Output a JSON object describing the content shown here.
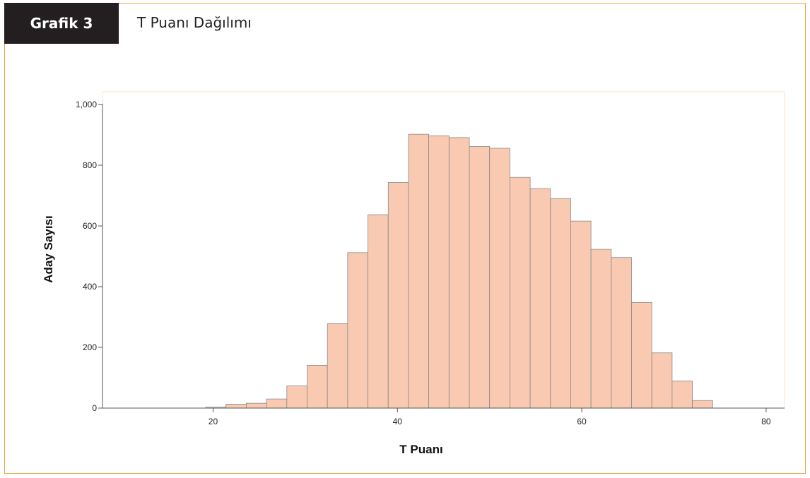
{
  "header": {
    "tag": "Grafik 3",
    "title": "T Puanı Dağılımı"
  },
  "colors": {
    "frame": "#f0a24a",
    "tag_bg": "#231f20",
    "bar_fill": "#f9c9b1",
    "bar_stroke": "#8a8a8a"
  },
  "chart_data": {
    "type": "bar",
    "histogram": true,
    "title": "",
    "xlabel": "T Puanı",
    "ylabel": "Aday Sayısı",
    "xlim": [
      8,
      82
    ],
    "ylim": [
      0,
      1000
    ],
    "xticks": [
      20,
      40,
      60,
      80
    ],
    "yticks": [
      0,
      200,
      400,
      600,
      800,
      1000
    ],
    "xtick_labels": [
      "20",
      "40",
      "60",
      "80"
    ],
    "ytick_labels": [
      "0",
      "200",
      "400",
      "600",
      "800",
      "1,000"
    ],
    "grid": false,
    "bin_width": 2.2,
    "bin_edges_start": 19.2,
    "values": [
      3,
      13,
      16,
      30,
      73,
      141,
      278,
      512,
      637,
      743,
      902,
      897,
      891,
      862,
      856,
      760,
      723,
      690,
      616,
      523,
      496,
      348,
      182,
      89,
      25
    ]
  }
}
